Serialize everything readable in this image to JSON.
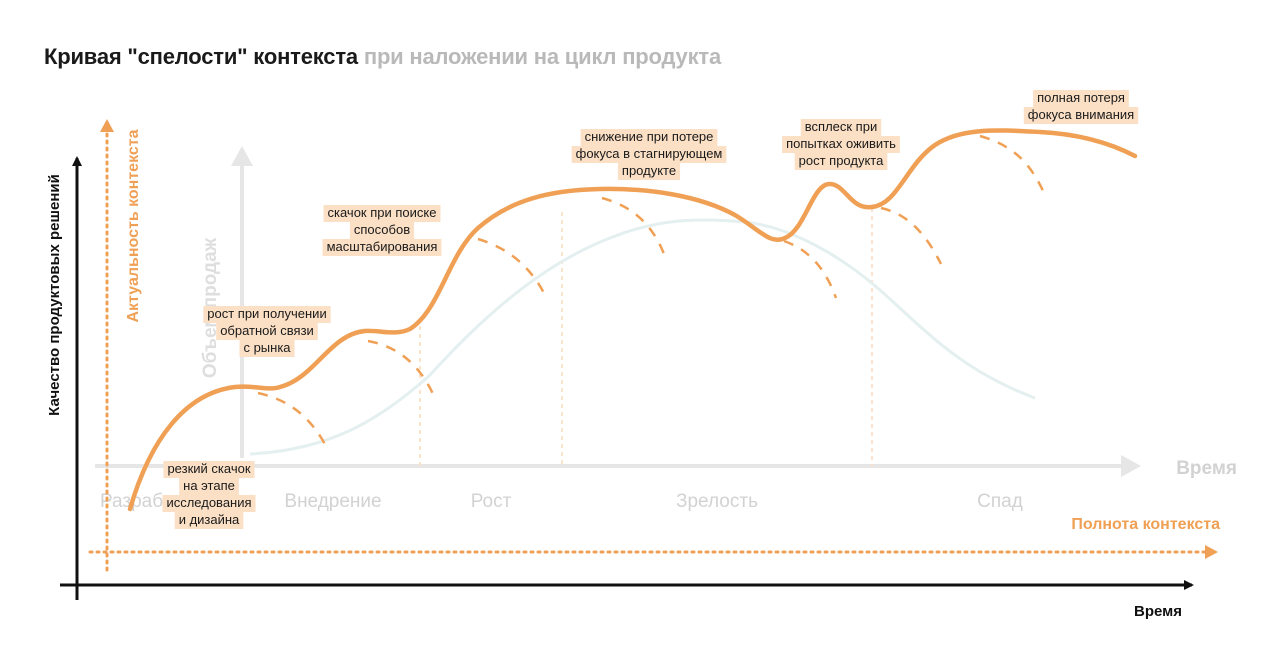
{
  "title": {
    "main": "Кривая \"спелости\" контекста",
    "secondary": "при наложении на цикл продукта"
  },
  "axes": {
    "main_y": "Качество продуктовых решений",
    "main_x": "Время",
    "orange_y": "Актуальность контекста",
    "orange_x": "Полнота контекста",
    "grey_y": "Объем продаж",
    "grey_x": "Время"
  },
  "phases": [
    "Разработка",
    "Внедрение",
    "Рост",
    "Зрелость",
    "Спад"
  ],
  "callouts": [
    {
      "id": "research",
      "lines": [
        "резкий скачок",
        "на этапе",
        "исследования",
        "и дизайна"
      ]
    },
    {
      "id": "feedback",
      "lines": [
        "рост при получении",
        "обратной связи",
        "с рынка"
      ]
    },
    {
      "id": "scaling",
      "lines": [
        "скачок при поиске",
        "способов",
        "масштабирования"
      ]
    },
    {
      "id": "stagnation",
      "lines": [
        "снижение при потере",
        "фокуса в стагнирующем",
        "продукте"
      ]
    },
    {
      "id": "revive",
      "lines": [
        "всплеск при",
        "попытках оживить",
        "рост продукта"
      ]
    },
    {
      "id": "lost-focus",
      "lines": [
        "полная потеря",
        "фокуса внимания"
      ]
    }
  ],
  "colors": {
    "orange": "#f0a055",
    "highlight": "#fbe0c6",
    "grey_axis": "#e6e6e6",
    "phase_text": "#d2d2d2",
    "sales_curve": "#e4efef",
    "dark": "#111111"
  }
}
